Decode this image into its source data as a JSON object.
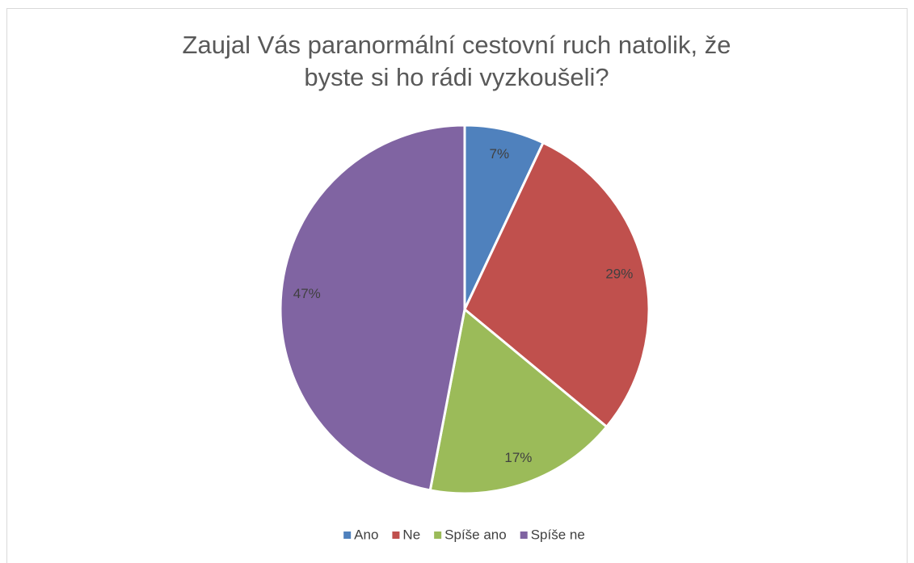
{
  "chart_data": {
    "type": "pie",
    "title": "Zaujal Vás paranormální cestovní ruch natolik, že byste si ho rádi vyzkoušeli?",
    "categories": [
      "Ano",
      "Ne",
      "Spíše ano",
      "Spíše ne"
    ],
    "values": [
      7,
      29,
      17,
      47
    ],
    "value_labels": [
      "7%",
      "29%",
      "17%",
      "47%"
    ],
    "colors": [
      "#4f81bd",
      "#c0504d",
      "#9bbb59",
      "#8064a2"
    ],
    "legend": "bottom"
  }
}
